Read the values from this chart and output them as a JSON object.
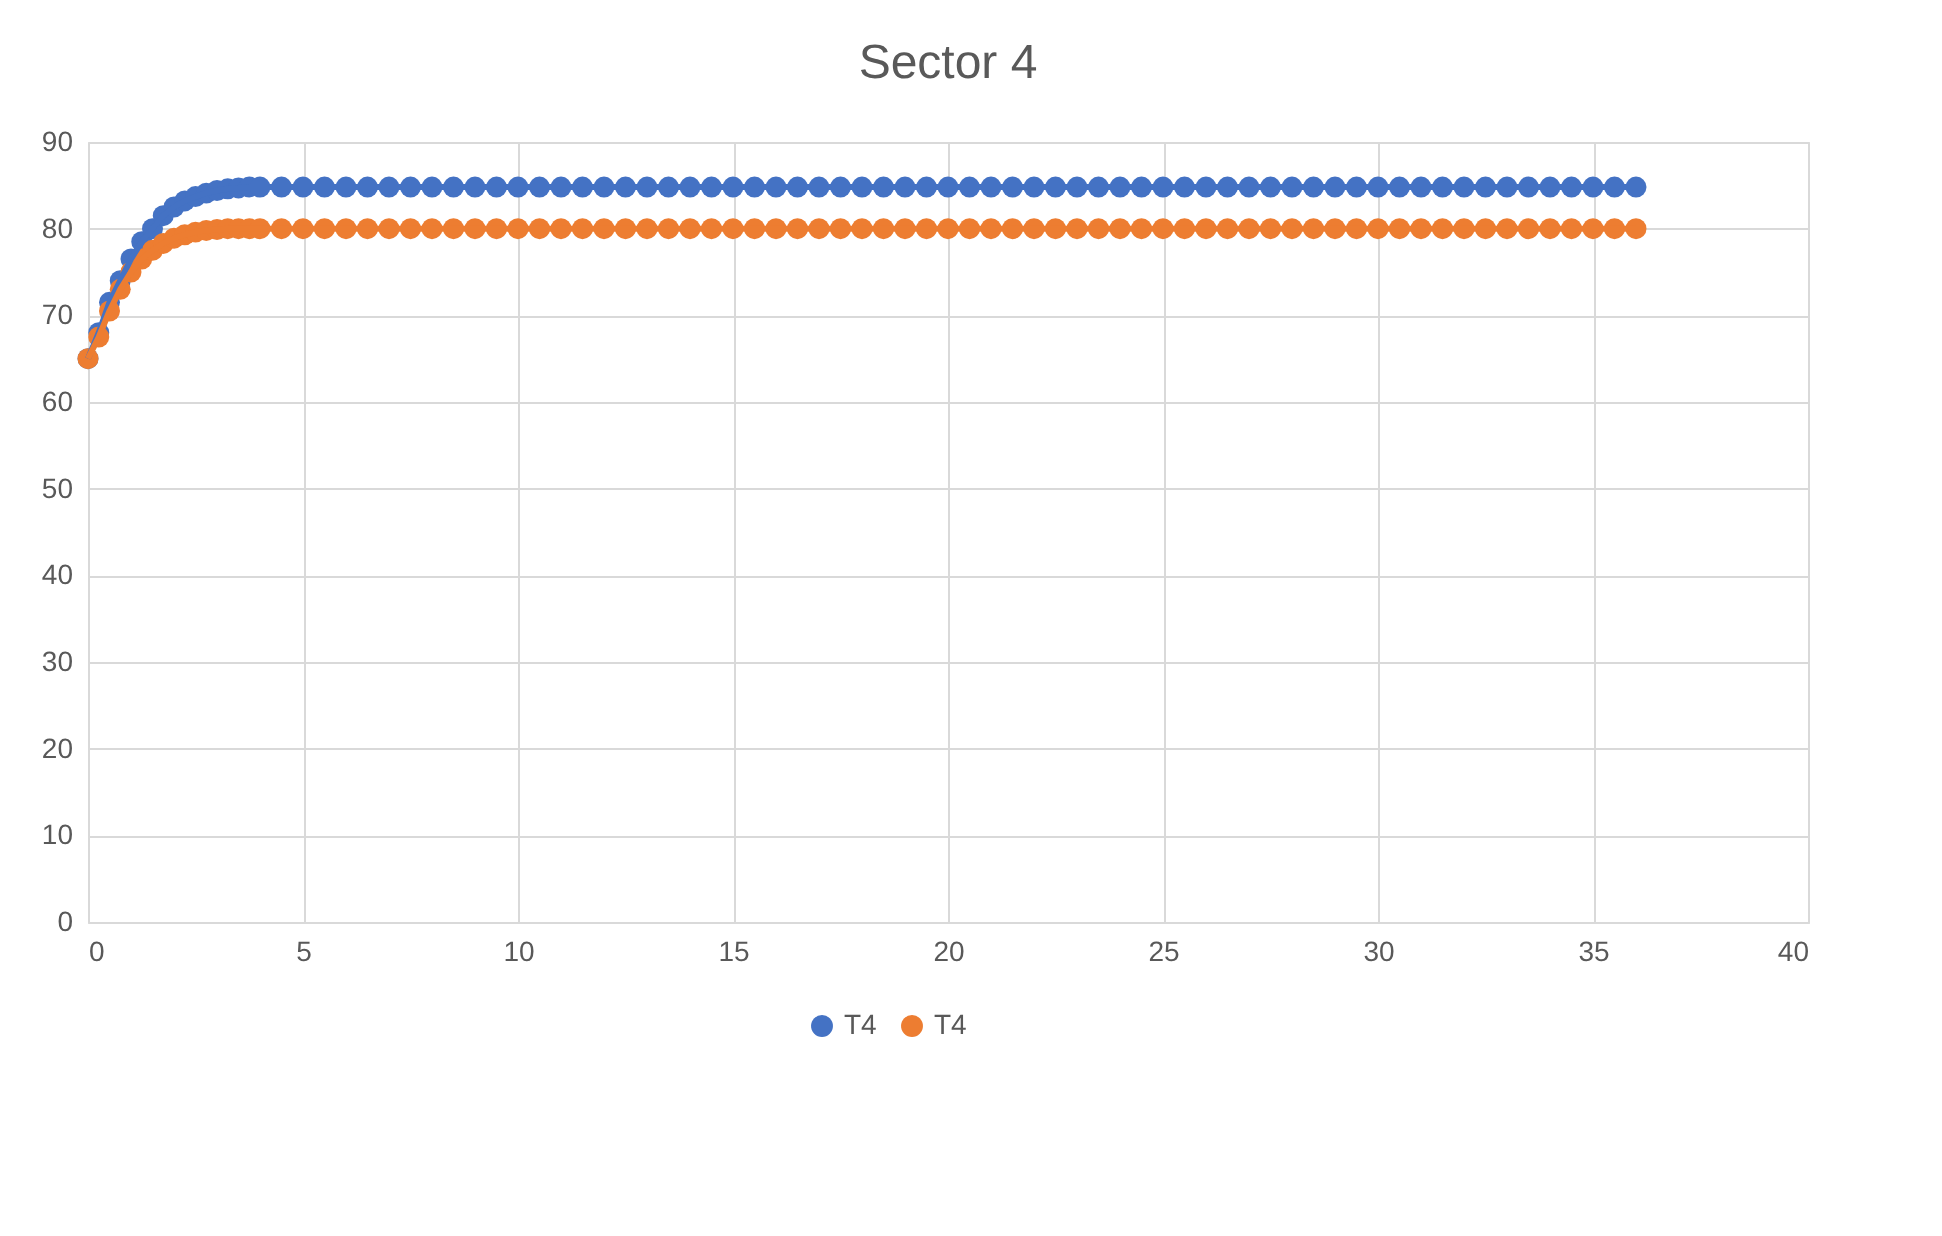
{
  "chart_data": {
    "type": "line",
    "title": "Sector 4",
    "x": [
      0,
      0.25,
      0.5,
      0.75,
      1,
      1.25,
      1.5,
      1.75,
      2,
      2.25,
      2.5,
      2.75,
      3,
      3.25,
      3.5,
      3.75,
      4,
      4.5,
      5,
      5.5,
      6,
      6.5,
      7,
      7.5,
      8,
      8.5,
      9,
      9.5,
      10,
      10.5,
      11,
      11.5,
      12,
      12.5,
      13,
      13.5,
      14,
      14.5,
      15,
      15.5,
      16,
      16.5,
      17,
      17.5,
      18,
      18.5,
      19,
      19.5,
      20,
      20.5,
      21,
      21.5,
      22,
      22.5,
      23,
      23.5,
      24,
      24.5,
      25,
      25.5,
      26,
      26.5,
      27,
      27.5,
      28,
      28.5,
      29,
      29.5,
      30,
      30.5,
      31,
      31.5,
      32,
      32.5,
      33,
      33.5,
      34,
      34.5,
      35,
      35.5,
      36
    ],
    "series": [
      {
        "name": "T4",
        "color": "#4472c4",
        "values": [
          65,
          68,
          71.5,
          74,
          76.5,
          78.5,
          80,
          81.5,
          82.5,
          83.2,
          83.7,
          84.1,
          84.4,
          84.6,
          84.7,
          84.8,
          84.8,
          84.8,
          84.8,
          84.8,
          84.8,
          84.8,
          84.8,
          84.8,
          84.8,
          84.8,
          84.8,
          84.8,
          84.8,
          84.8,
          84.8,
          84.8,
          84.8,
          84.8,
          84.8,
          84.8,
          84.8,
          84.8,
          84.8,
          84.8,
          84.8,
          84.8,
          84.8,
          84.8,
          84.8,
          84.8,
          84.8,
          84.8,
          84.8,
          84.8,
          84.8,
          84.8,
          84.8,
          84.8,
          84.8,
          84.8,
          84.8,
          84.8,
          84.8,
          84.8,
          84.8,
          84.8,
          84.8,
          84.8,
          84.8,
          84.8,
          84.8,
          84.8,
          84.8,
          84.8,
          84.8,
          84.8,
          84.8,
          84.8,
          84.8,
          84.8,
          84.8,
          84.8,
          84.8,
          84.8,
          84.8
        ]
      },
      {
        "name": "T4",
        "color": "#ed7d31",
        "values": [
          65,
          67.5,
          70.5,
          73,
          75,
          76.5,
          77.5,
          78.3,
          78.9,
          79.3,
          79.6,
          79.8,
          79.9,
          80,
          80,
          80,
          80,
          80,
          80,
          80,
          80,
          80,
          80,
          80,
          80,
          80,
          80,
          80,
          80,
          80,
          80,
          80,
          80,
          80,
          80,
          80,
          80,
          80,
          80,
          80,
          80,
          80,
          80,
          80,
          80,
          80,
          80,
          80,
          80,
          80,
          80,
          80,
          80,
          80,
          80,
          80,
          80,
          80,
          80,
          80,
          80,
          80,
          80,
          80,
          80,
          80,
          80,
          80,
          80,
          80,
          80,
          80,
          80,
          80,
          80,
          80,
          80,
          80,
          80,
          80,
          80
        ]
      }
    ],
    "xlim": [
      0,
      40
    ],
    "xticks": [
      0,
      5,
      10,
      15,
      20,
      25,
      30,
      35,
      40
    ],
    "ylim": [
      0,
      90
    ],
    "yticks": [
      0,
      10,
      20,
      30,
      40,
      50,
      60,
      70,
      80,
      90
    ],
    "grid": true,
    "legend": "bottom",
    "marker": "circle",
    "line_style": "solid"
  }
}
